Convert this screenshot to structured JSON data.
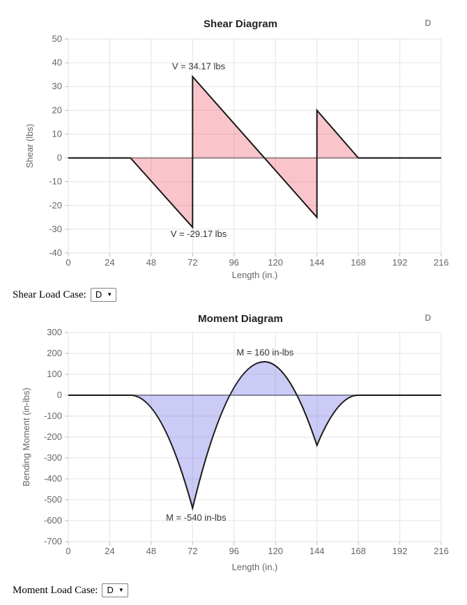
{
  "chart_data": [
    {
      "id": "shear",
      "type": "area",
      "title": "Shear Diagram",
      "legend": {
        "position": "top-right",
        "entries": [
          "D"
        ]
      },
      "xlabel": "Length (in.)",
      "ylabel": "Shear (lbs)",
      "xlim": [
        0,
        216
      ],
      "ylim": [
        -40,
        50
      ],
      "x_ticks": [
        0,
        24,
        48,
        72,
        96,
        120,
        144,
        168,
        192,
        216
      ],
      "y_ticks": [
        50,
        40,
        30,
        20,
        10,
        0,
        -10,
        -20,
        -30,
        -40
      ],
      "grid": true,
      "series": [
        {
          "name": "D",
          "line_color": "#1a1a1a",
          "fill_color": "rgba(235,75,90,0.32)",
          "path": [
            [
              "M",
              0,
              0
            ],
            [
              "L",
              36,
              0
            ],
            [
              "L",
              72,
              -29.17
            ],
            [
              "L",
              72,
              34.17
            ],
            [
              "L",
              144,
              -25
            ],
            [
              "L",
              144,
              20
            ],
            [
              "L",
              168,
              0
            ],
            [
              "L",
              216,
              0
            ]
          ],
          "key_points": [
            [
              0,
              0
            ],
            [
              36,
              0
            ],
            [
              72,
              -29.17
            ],
            [
              72,
              34.17
            ],
            [
              113.6,
              0
            ],
            [
              144,
              -25
            ],
            [
              144,
              20
            ],
            [
              168,
              0
            ],
            [
              216,
              0
            ]
          ]
        }
      ],
      "annotations": [
        {
          "text": "V = 34.17 lbs",
          "x": 75.5,
          "y": 37.2
        },
        {
          "text": "V = -29.17 lbs",
          "x": 75.5,
          "y": -33.3
        }
      ]
    },
    {
      "id": "moment",
      "type": "area",
      "title": "Moment Diagram",
      "legend": {
        "position": "top-right",
        "entries": [
          "D"
        ]
      },
      "xlabel": "Length (in.)",
      "ylabel": "Bending Moment (in-lbs)",
      "xlim": [
        0,
        216
      ],
      "ylim": [
        -700,
        300
      ],
      "x_ticks": [
        0,
        24,
        48,
        72,
        96,
        120,
        144,
        168,
        192,
        216
      ],
      "y_ticks": [
        300,
        200,
        100,
        0,
        -100,
        -200,
        -300,
        -400,
        -500,
        -600,
        -700
      ],
      "grid": true,
      "series": [
        {
          "name": "D",
          "line_color": "#1a1a1a",
          "fill_color": "rgba(105,105,230,0.35)",
          "path": [
            [
              "M",
              0,
              0
            ],
            [
              "L",
              36,
              0
            ],
            [
              "Q",
              54,
              0,
              72,
              -540
            ],
            [
              "Q",
              92.5,
              160,
              113.6,
              160
            ],
            [
              "Q",
              128,
              160,
              144,
              -240
            ],
            [
              "Q",
              156,
              0,
              168,
              0
            ],
            [
              "L",
              216,
              0
            ]
          ],
          "key_points": [
            [
              0,
              0
            ],
            [
              36,
              0
            ],
            [
              72,
              -540
            ],
            [
              113.6,
              160
            ],
            [
              144,
              -240
            ],
            [
              168,
              0
            ],
            [
              216,
              0
            ]
          ]
        }
      ],
      "annotations": [
        {
          "text": "M = 160 in-lbs",
          "x": 114,
          "y": 190
        },
        {
          "text": "M = -540 in-lbs",
          "x": 74,
          "y": -600
        }
      ]
    }
  ],
  "controls": {
    "shear": {
      "label": "Shear Load Case:",
      "value": "D",
      "arrow_icon": "▼"
    },
    "moment": {
      "label": "Moment Load Case:",
      "value": "D",
      "arrow_icon": "▼"
    }
  },
  "colors": {
    "shear_fill": "rgba(235,75,90,0.32)",
    "moment_fill": "rgba(105,105,230,0.35)",
    "series_line": "#1a1a1a",
    "zero_line": "#8a8a8a",
    "grid": "#e3e3e3",
    "tick_mark": "#bbbbbb",
    "tick_label": "#666666",
    "axis_title": "#666666",
    "chart_title": "#222222",
    "legend_label": "#555555",
    "annotation": "#333333"
  }
}
